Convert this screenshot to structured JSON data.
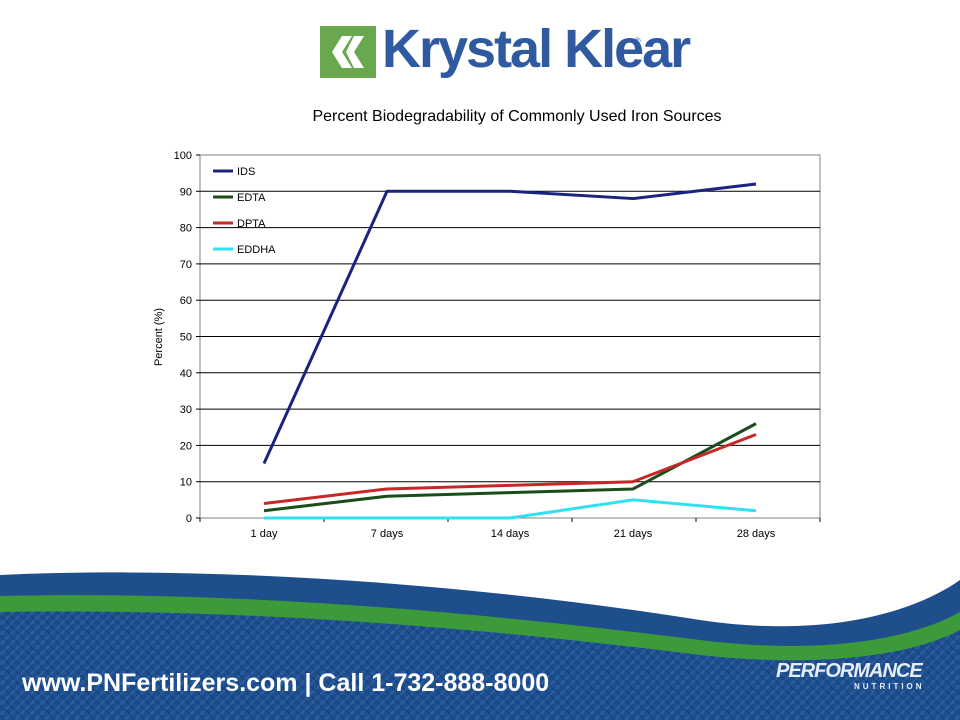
{
  "brand": {
    "logo_text": "Krystal Klear",
    "registered_mark": "®",
    "colors": {
      "logo_green": "#6aa84f",
      "logo_blue": "#2f5aa0"
    }
  },
  "chart_data": {
    "type": "line",
    "title": "Percent Biodegradability of Commonly Used Iron Sources",
    "xlabel": "",
    "ylabel": "Percent (%)",
    "categories": [
      "1 day",
      "7 days",
      "14 days",
      "21 days",
      "28 days"
    ],
    "ylim": [
      0,
      100
    ],
    "yticks": [
      0,
      10,
      20,
      30,
      40,
      50,
      60,
      70,
      80,
      90,
      100
    ],
    "grid": true,
    "legend_position": "top-left",
    "series": [
      {
        "name": "IDS",
        "color": "#1a237e",
        "values": [
          15,
          90,
          90,
          88,
          92
        ]
      },
      {
        "name": "EDTA",
        "color": "#1b4d1b",
        "values": [
          2,
          6,
          7,
          8,
          26
        ]
      },
      {
        "name": "DPTA",
        "color": "#c62828",
        "values": [
          4,
          8,
          9,
          10,
          23
        ]
      },
      {
        "name": "EDDHA",
        "color": "#33e0f0",
        "values": [
          0,
          0,
          0,
          5,
          2
        ]
      }
    ]
  },
  "footer": {
    "contact": "www.PNFertilizers.com | Call 1-732-888-8000",
    "partner_logo": "PERFORMANCE",
    "partner_logo_sub": "NUTRITION",
    "colors": {
      "band_blue": "#1f4e8c",
      "band_green": "#3d9a3a"
    }
  }
}
